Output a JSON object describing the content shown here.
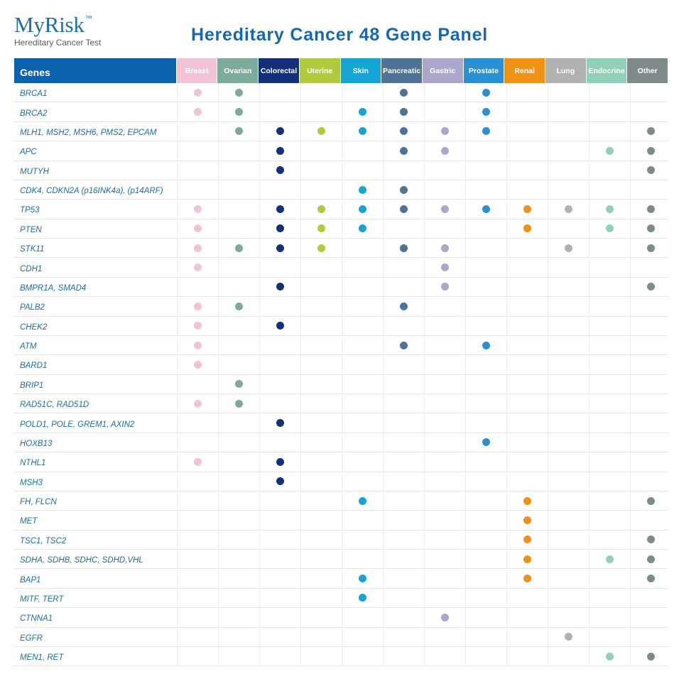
{
  "brand": {
    "name": "MyRisk",
    "trademark": "™",
    "subtitle": "Hereditary Cancer Test"
  },
  "page_title": "Hereditary Cancer 48 Gene Panel",
  "table": {
    "genes_header": "Genes",
    "columns": [
      {
        "key": "breast",
        "label": "Breast",
        "color": "#f2c2d8",
        "text_color": "#ffffff"
      },
      {
        "key": "ovarian",
        "label": "Ovarian",
        "color": "#7aab9b",
        "text_color": "#ffffff"
      },
      {
        "key": "colorectal",
        "label": "Colorectal",
        "color": "#14307a",
        "text_color": "#ffffff"
      },
      {
        "key": "uterine",
        "label": "Uterine",
        "color": "#afcb3c",
        "text_color": "#ffffff"
      },
      {
        "key": "skin",
        "label": "Skin",
        "color": "#16a4d4",
        "text_color": "#ffffff"
      },
      {
        "key": "pancreatic",
        "label": "Pancreatic",
        "color": "#4e7396",
        "text_color": "#ffffff"
      },
      {
        "key": "gastric",
        "label": "Gastric",
        "color": "#aba7cc",
        "text_color": "#ffffff"
      },
      {
        "key": "prostate",
        "label": "Prostate",
        "color": "#2990d3",
        "text_color": "#ffffff"
      },
      {
        "key": "renal",
        "label": "Renal",
        "color": "#ef9216",
        "text_color": "#ffffff"
      },
      {
        "key": "lung",
        "label": "Lung",
        "color": "#b1b1b1",
        "text_color": "#ffffff"
      },
      {
        "key": "endocrine",
        "label": "Endocrine",
        "color": "#8fd0b6",
        "text_color": "#ffffff"
      },
      {
        "key": "other",
        "label": "Other",
        "color": "#7d8b8a",
        "text_color": "#ffffff"
      }
    ],
    "rows": [
      {
        "gene": "BRCA1",
        "marks": [
          "breast",
          "ovarian",
          "pancreatic",
          "prostate"
        ]
      },
      {
        "gene": "BRCA2",
        "marks": [
          "breast",
          "ovarian",
          "skin",
          "pancreatic",
          "prostate"
        ]
      },
      {
        "gene": "MLH1, MSH2, MSH6, PMS2, EPCAM",
        "marks": [
          "ovarian",
          "colorectal",
          "uterine",
          "skin",
          "pancreatic",
          "gastric",
          "prostate",
          "other"
        ]
      },
      {
        "gene": "APC",
        "marks": [
          "colorectal",
          "pancreatic",
          "gastric",
          "endocrine",
          "other"
        ]
      },
      {
        "gene": "MUTYH",
        "marks": [
          "colorectal",
          "other"
        ]
      },
      {
        "gene": "CDK4, CDKN2A (p16INK4a), (p14ARF)",
        "marks": [
          "skin",
          "pancreatic"
        ]
      },
      {
        "gene": "TP53",
        "marks": [
          "breast",
          "colorectal",
          "uterine",
          "skin",
          "pancreatic",
          "gastric",
          "prostate",
          "renal",
          "lung",
          "endocrine",
          "other"
        ]
      },
      {
        "gene": "PTEN",
        "marks": [
          "breast",
          "colorectal",
          "uterine",
          "skin",
          "renal",
          "endocrine",
          "other"
        ]
      },
      {
        "gene": "STK11",
        "marks": [
          "breast",
          "ovarian",
          "colorectal",
          "uterine",
          "pancreatic",
          "gastric",
          "lung",
          "other"
        ]
      },
      {
        "gene": "CDH1",
        "marks": [
          "breast",
          "gastric"
        ]
      },
      {
        "gene": "BMPR1A,  SMAD4",
        "marks": [
          "colorectal",
          "gastric",
          "other"
        ]
      },
      {
        "gene": "PALB2",
        "marks": [
          "breast",
          "ovarian",
          "pancreatic"
        ]
      },
      {
        "gene": "CHEK2",
        "marks": [
          "breast",
          "colorectal"
        ]
      },
      {
        "gene": "ATM",
        "marks": [
          "breast",
          "pancreatic",
          "prostate"
        ]
      },
      {
        "gene": "BARD1",
        "marks": [
          "breast"
        ]
      },
      {
        "gene": "BRIP1",
        "marks": [
          "ovarian"
        ]
      },
      {
        "gene": "RAD51C, RAD51D",
        "marks": [
          "breast",
          "ovarian"
        ]
      },
      {
        "gene": "POLD1, POLE, GREM1, AXIN2",
        "marks": [
          "colorectal"
        ]
      },
      {
        "gene": "HOXB13",
        "marks": [
          "prostate"
        ]
      },
      {
        "gene": "NTHL1",
        "marks": [
          "breast",
          "colorectal"
        ]
      },
      {
        "gene": "MSH3",
        "marks": [
          "colorectal"
        ]
      },
      {
        "gene": "FH, FLCN",
        "marks": [
          "skin",
          "renal",
          "other"
        ]
      },
      {
        "gene": "MET",
        "marks": [
          "renal"
        ]
      },
      {
        "gene": "TSC1, TSC2",
        "marks": [
          "renal",
          "other"
        ]
      },
      {
        "gene": "SDHA, SDHB, SDHC, SDHD,VHL",
        "marks": [
          "renal",
          "endocrine",
          "other"
        ]
      },
      {
        "gene": "BAP1",
        "marks": [
          "skin",
          "renal",
          "other"
        ]
      },
      {
        "gene": "MITF, TERT",
        "marks": [
          "skin"
        ]
      },
      {
        "gene": "CTNNA1",
        "marks": [
          "gastric"
        ]
      },
      {
        "gene": "EGFR",
        "marks": [
          "lung"
        ]
      },
      {
        "gene": "MEN1, RET",
        "marks": [
          "endocrine",
          "other"
        ]
      }
    ]
  }
}
